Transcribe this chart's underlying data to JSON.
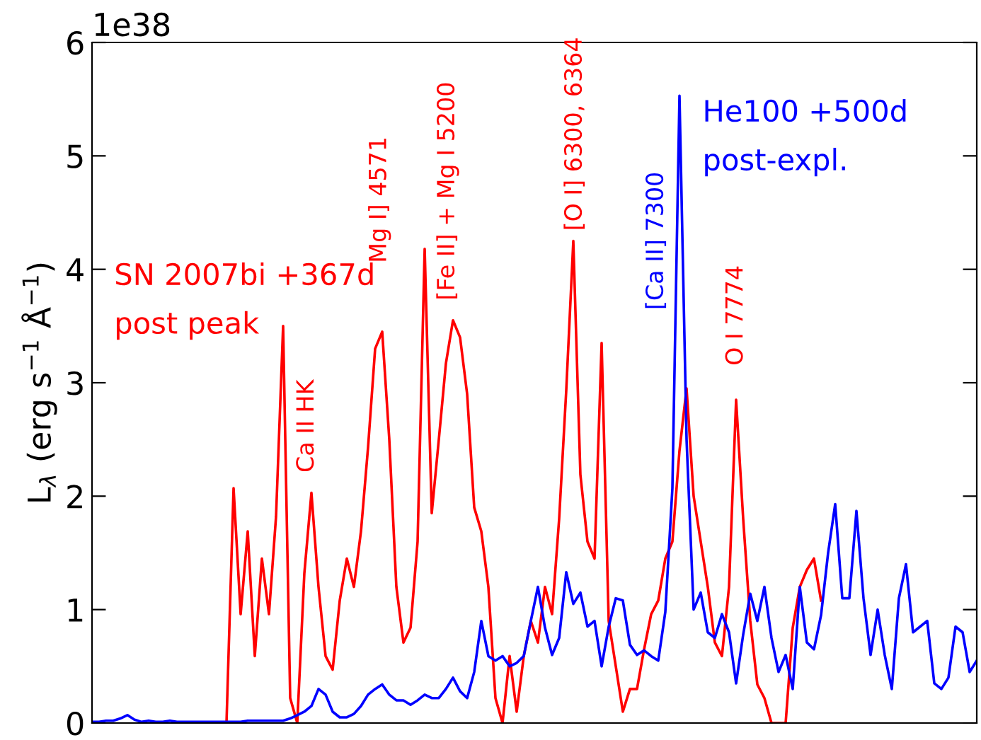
{
  "chart_data": {
    "type": "line",
    "ylabel": "L$_{λ}$ (erg s$^{−1}$ Å$^{−1}$)",
    "categories": [
      null,
      null,
      null,
      null,
      null,
      null,
      null,
      null,
      null,
      null,
      null,
      null,
      null,
      null,
      null,
      null,
      null,
      null,
      null,
      null,
      null,
      null,
      null,
      null,
      null,
      null,
      null,
      null,
      null,
      null,
      null,
      null,
      null,
      null,
      null,
      null,
      null,
      null,
      null,
      null,
      null,
      null,
      null,
      null,
      null,
      null,
      null,
      null,
      null,
      null,
      null,
      null,
      null,
      null,
      null,
      null,
      null,
      null,
      null,
      null,
      null,
      null,
      null,
      null,
      null,
      null,
      null,
      null,
      null,
      null,
      null,
      null,
      null,
      null,
      null,
      null,
      null,
      null,
      null,
      null,
      null,
      null,
      null,
      null,
      null,
      null,
      null,
      null,
      null,
      null,
      null,
      null,
      null,
      null,
      null,
      null,
      null,
      null,
      null,
      null,
      null,
      null,
      null,
      null,
      null,
      null,
      null,
      null,
      null,
      null,
      null,
      null,
      null,
      null,
      null,
      null,
      null,
      null,
      null,
      null,
      null,
      null,
      null,
      null,
      null,
      null
    ],
    "ylim": [
      0,
      6
    ],
    "yticks": [
      0,
      1,
      2,
      3,
      4,
      5,
      6
    ],
    "tick_labels": "y",
    "grid": false,
    "marker": "none",
    "line_style": "solid",
    "series": [
      {
        "name": "SN 2007bi +367d\npost peak",
        "color": "#ff0000",
        "values": [
          null,
          null,
          null,
          null,
          null,
          null,
          null,
          null,
          null,
          null,
          null,
          null,
          null,
          null,
          null,
          null,
          null,
          null,
          null,
          0,
          2.07,
          0.96,
          1.69,
          0.59,
          1.45,
          0.96,
          1.82,
          3.5,
          0.22,
          0,
          1.32,
          2.03,
          1.2,
          0.59,
          0.47,
          1.08,
          1.45,
          1.2,
          1.69,
          2.43,
          3.3,
          3.45,
          2.5,
          1.2,
          0.71,
          0.84,
          1.6,
          4.18,
          1.85,
          2.5,
          3.17,
          3.55,
          3.4,
          2.9,
          1.9,
          1.69,
          1.2,
          0.22,
          0,
          0.59,
          0.1,
          0.59,
          0.9,
          0.71,
          1.2,
          0.96,
          1.8,
          2.93,
          4.25,
          2.19,
          1.6,
          1.45,
          3.35,
          0.9,
          0.5,
          0.1,
          0.3,
          0.3,
          0.65,
          0.96,
          1.08,
          1.45,
          1.6,
          2.4,
          2.95,
          2.0,
          1.6,
          1.2,
          0.71,
          0.59,
          1.2,
          2.85,
          1.8,
          0.9,
          0.34,
          0.22,
          0,
          0,
          0,
          0.84,
          1.2,
          1.35,
          1.45,
          1.08,
          null,
          null,
          null,
          null,
          null,
          null,
          null,
          null,
          null,
          null,
          null,
          null,
          null,
          null,
          null,
          null,
          null,
          null,
          null,
          null,
          null,
          null
        ]
      },
      {
        "name": "He100 +500d\npost-expl.",
        "color": "#0000ff",
        "values": [
          0.01,
          0.01,
          0.02,
          0.02,
          0.04,
          0.07,
          0.03,
          0.01,
          0.02,
          0.01,
          0.01,
          0.02,
          0.01,
          0.01,
          0.01,
          0.01,
          0.01,
          0.01,
          0.01,
          0.01,
          0.01,
          0.01,
          0.02,
          0.02,
          0.02,
          0.02,
          0.02,
          0.02,
          0.04,
          0.07,
          0.1,
          0.15,
          0.3,
          0.25,
          0.1,
          0.05,
          0.05,
          0.08,
          0.15,
          0.25,
          0.3,
          0.34,
          0.25,
          0.2,
          0.2,
          0.16,
          0.2,
          0.25,
          0.22,
          0.22,
          0.3,
          0.4,
          0.28,
          0.22,
          0.45,
          0.9,
          0.59,
          0.55,
          0.59,
          0.5,
          0.53,
          0.59,
          0.9,
          1.2,
          0.84,
          0.6,
          0.75,
          1.33,
          1.05,
          1.15,
          0.85,
          0.9,
          0.5,
          0.85,
          1.1,
          1.08,
          0.69,
          0.6,
          0.64,
          0.59,
          0.55,
          0.98,
          2.07,
          5.53,
          2.5,
          1.0,
          1.15,
          0.8,
          0.75,
          0.96,
          0.8,
          0.35,
          0.78,
          1.14,
          0.9,
          1.2,
          0.75,
          0.45,
          0.6,
          0.3,
          1.2,
          0.71,
          0.65,
          0.95,
          1.5,
          1.93,
          1.1,
          1.1,
          1.87,
          1.1,
          0.6,
          1.0,
          0.6,
          0.3,
          1.1,
          1.4,
          0.8,
          0.85,
          0.9,
          0.35,
          0.3,
          0.4,
          0.85,
          0.8,
          0.45,
          0.55
        ]
      }
    ],
    "annotations": [
      "1e38",
      "Ca II HK",
      "Mg I] 4571",
      "[Fe II] + Mg I 5200",
      "[O I] 6300, 6364",
      "[Ca II] 7300",
      "O I 7774"
    ]
  }
}
